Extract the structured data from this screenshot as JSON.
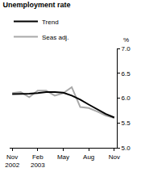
{
  "chart_data": {
    "type": "line",
    "title": "Unemployment rate",
    "ylabel": "%",
    "categories": [
      "Nov 2002",
      null,
      null,
      "Feb 2003",
      null,
      null,
      "May",
      null,
      null,
      "Aug",
      null,
      null,
      "Nov"
    ],
    "series": [
      {
        "name": "Trend",
        "color": "#000000",
        "line_style": "solid",
        "values": [
          6.08,
          6.08,
          6.09,
          6.1,
          6.12,
          6.12,
          6.11,
          6.05,
          5.97,
          5.87,
          5.77,
          5.68,
          5.61
        ]
      },
      {
        "name": "Seas adj.",
        "color": "#a8a8a8",
        "line_style": "solid",
        "values": [
          6.1,
          6.12,
          6.02,
          6.15,
          6.15,
          6.05,
          6.1,
          6.22,
          5.82,
          5.8,
          5.73,
          5.65,
          5.6
        ]
      }
    ],
    "ylim": [
      5.0,
      7.0
    ],
    "yticks": [
      {
        "value": 5.0,
        "label": "5.0"
      },
      5.5,
      {
        "value": 6.0,
        "label": "6.0"
      },
      6.5,
      {
        "value": 7.0,
        "label": "7.0"
      }
    ],
    "grid": false,
    "legend": "top-left"
  }
}
